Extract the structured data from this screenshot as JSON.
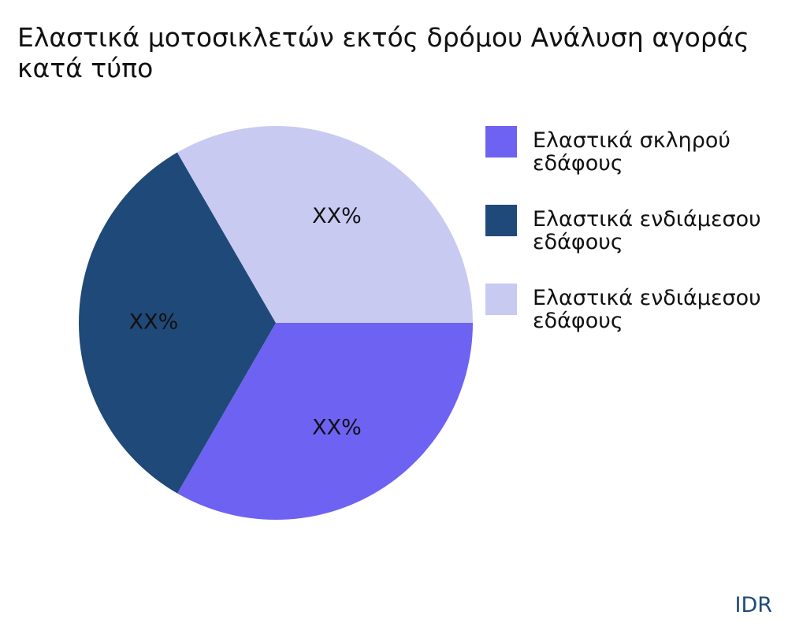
{
  "chart_data": {
    "type": "pie",
    "title": "Ελαστικά μοτοσικλετών εκτός δρόμου Ανάλυση αγοράς κατά τύπο",
    "slices": [
      {
        "name": "Ελαστικά σκληρού εδάφους",
        "value": 33.33,
        "label": "XX%",
        "color": "#6e62f2"
      },
      {
        "name": "Ελαστικά ενδιάμεσου εδάφους",
        "value": 33.33,
        "label": "XX%",
        "color": "#1f4978"
      },
      {
        "name": "Ελαστικά ενδιάμεσου εδάφους",
        "value": 33.34,
        "label": "XX%",
        "color": "#c8caf2"
      }
    ],
    "legend_position": "right"
  },
  "watermark": "IDR"
}
